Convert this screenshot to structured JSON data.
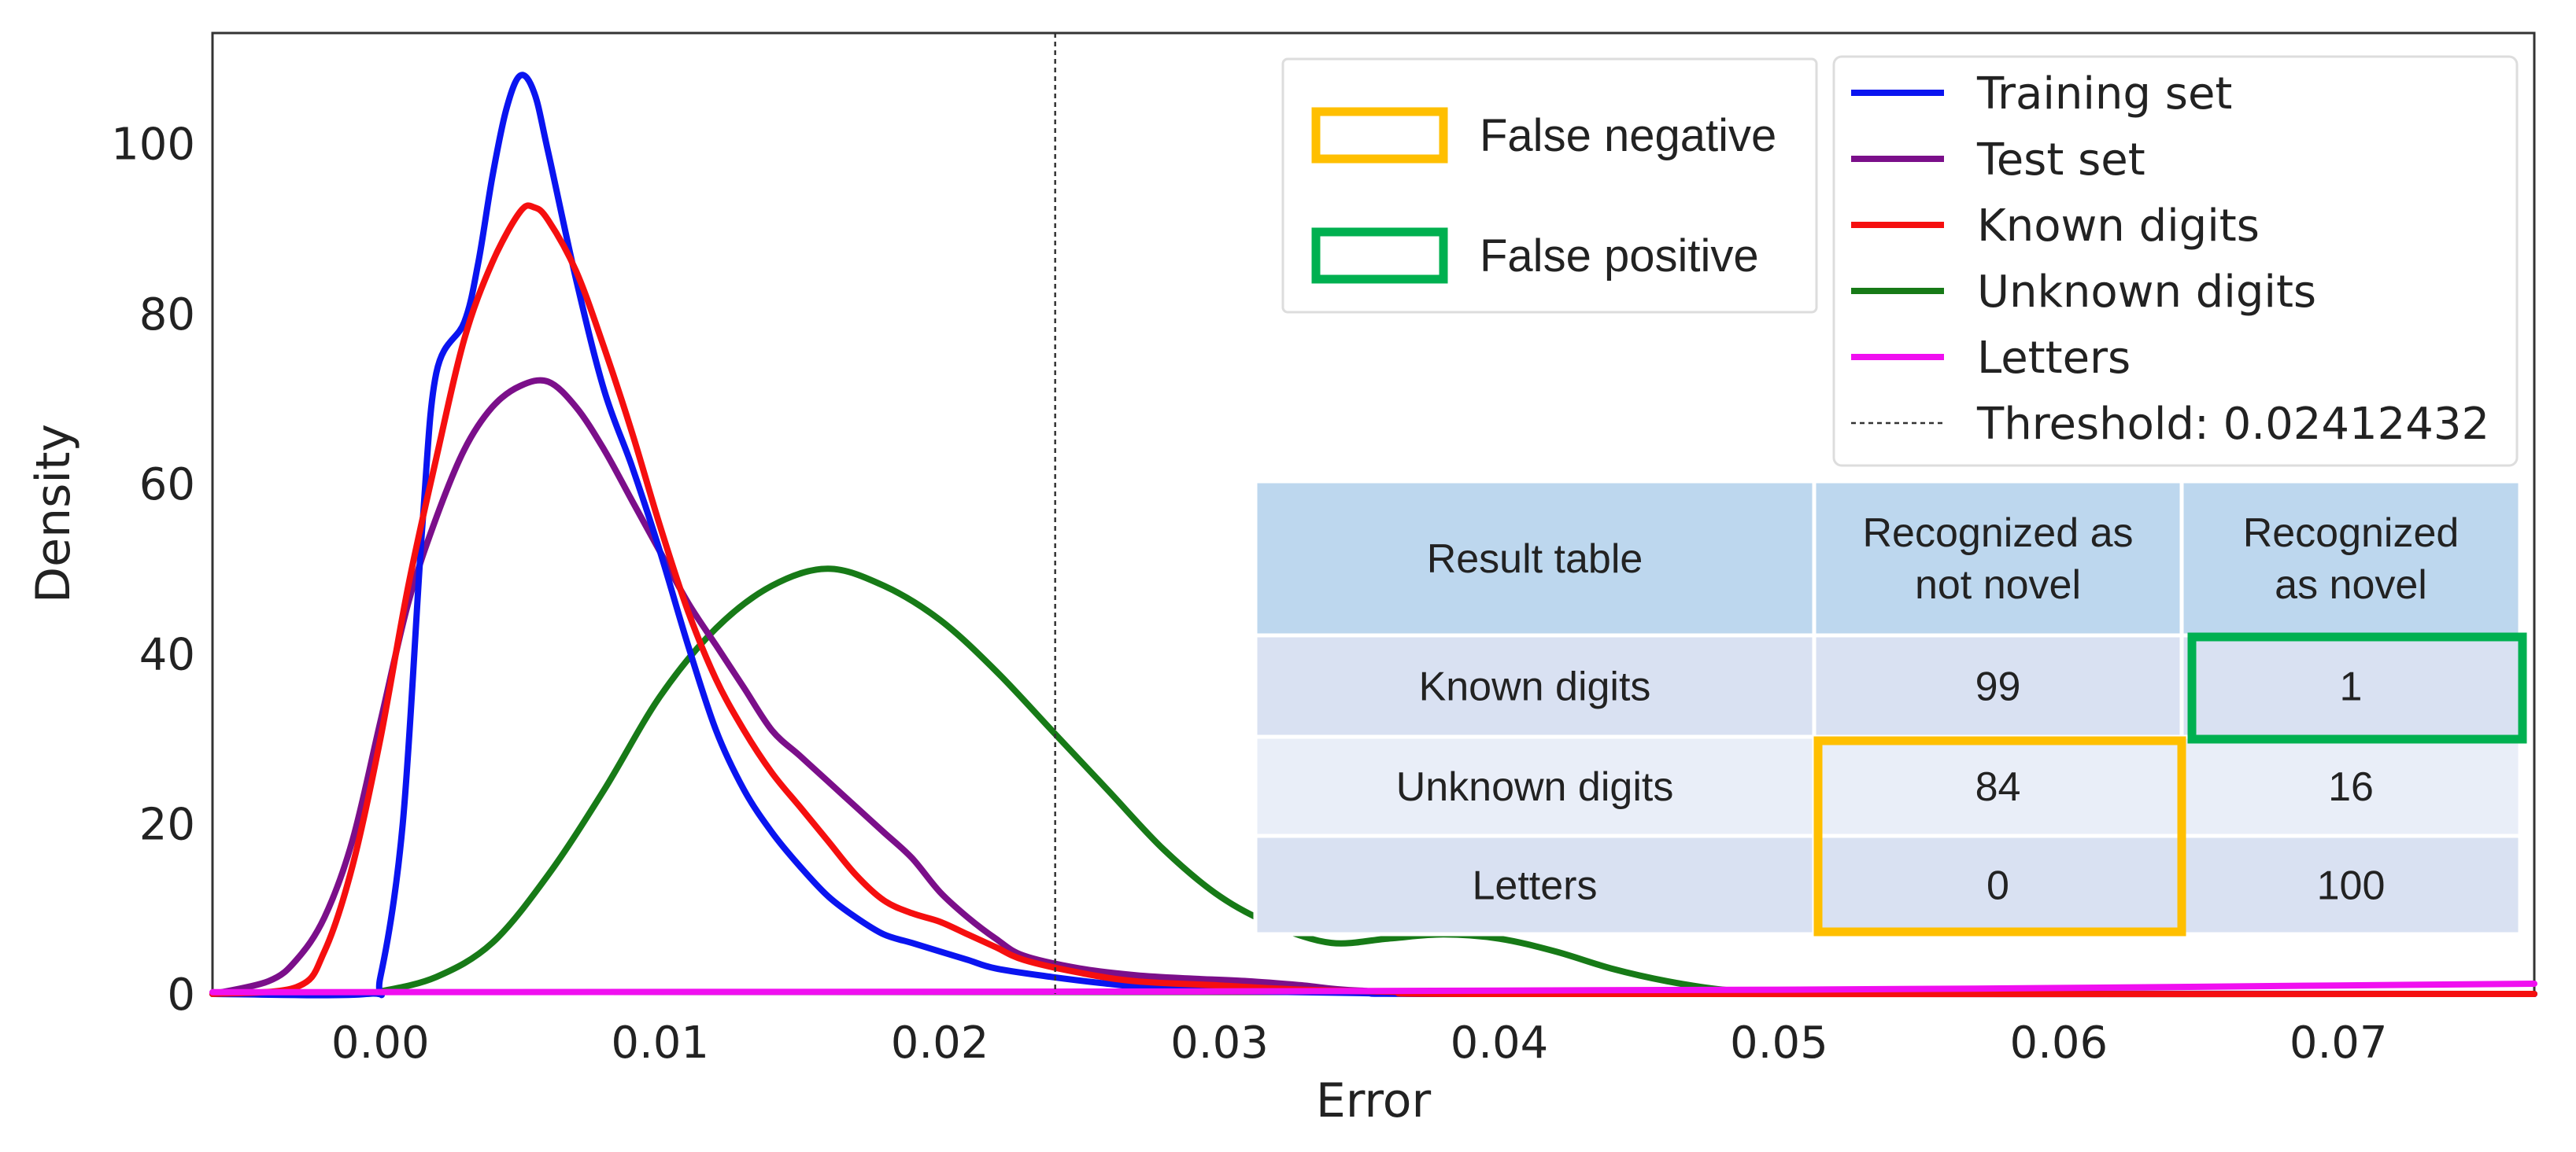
{
  "colors": {
    "training": "#0a14f0",
    "test": "#7b0f8a",
    "known": "#f50f0f",
    "unknown": "#177a17",
    "letters": "#f00ff0",
    "false_negative": "#ffbf00",
    "false_positive": "#00b050",
    "table_header": "#bdd7ee",
    "table_row_a": "#d9e1f2",
    "table_row_b": "#e9eef8"
  },
  "chart_data": {
    "type": "line",
    "xlabel": "Error",
    "ylabel": "Density",
    "xlim": [
      -0.006,
      0.077
    ],
    "ylim": [
      0,
      113
    ],
    "xticks": [
      "0.00",
      "0.01",
      "0.02",
      "0.03",
      "0.04",
      "0.05",
      "0.06",
      "0.07"
    ],
    "xtick_values": [
      0.0,
      0.01,
      0.02,
      0.03,
      0.04,
      0.05,
      0.06,
      0.07
    ],
    "yticks": [
      "0",
      "20",
      "40",
      "60",
      "80",
      "100"
    ],
    "ytick_values": [
      0,
      20,
      40,
      60,
      80,
      100
    ],
    "threshold": {
      "value": 0.02412432,
      "label": "Threshold: 0.02412432"
    },
    "series": [
      {
        "name": "Training set",
        "color_key": "training",
        "points": [
          [
            -0.006,
            0
          ],
          [
            -0.0005,
            0
          ],
          [
            0.0,
            2
          ],
          [
            0.0008,
            20
          ],
          [
            0.0015,
            55
          ],
          [
            0.002,
            73
          ],
          [
            0.003,
            79
          ],
          [
            0.0035,
            86
          ],
          [
            0.004,
            96
          ],
          [
            0.0045,
            104
          ],
          [
            0.005,
            108
          ],
          [
            0.0055,
            106
          ],
          [
            0.006,
            99
          ],
          [
            0.007,
            84
          ],
          [
            0.008,
            71
          ],
          [
            0.009,
            62
          ],
          [
            0.01,
            52
          ],
          [
            0.011,
            41
          ],
          [
            0.012,
            31
          ],
          [
            0.013,
            24
          ],
          [
            0.014,
            19
          ],
          [
            0.015,
            15
          ],
          [
            0.016,
            11.5
          ],
          [
            0.017,
            9
          ],
          [
            0.018,
            7
          ],
          [
            0.019,
            6
          ],
          [
            0.02,
            5
          ],
          [
            0.021,
            4
          ],
          [
            0.022,
            3
          ],
          [
            0.024,
            2
          ],
          [
            0.026,
            1.2
          ],
          [
            0.028,
            0.6
          ],
          [
            0.031,
            0.3
          ],
          [
            0.035,
            0.1
          ],
          [
            0.04,
            0
          ],
          [
            0.077,
            0
          ]
        ]
      },
      {
        "name": "Test set",
        "color_key": "test",
        "points": [
          [
            -0.006,
            0
          ],
          [
            -0.004,
            1.5
          ],
          [
            -0.003,
            4
          ],
          [
            -0.002,
            9
          ],
          [
            -0.001,
            18
          ],
          [
            0.0,
            32
          ],
          [
            0.001,
            46
          ],
          [
            0.002,
            56
          ],
          [
            0.003,
            64
          ],
          [
            0.004,
            69
          ],
          [
            0.005,
            71.5
          ],
          [
            0.006,
            72
          ],
          [
            0.007,
            69
          ],
          [
            0.008,
            64
          ],
          [
            0.009,
            58
          ],
          [
            0.01,
            52
          ],
          [
            0.011,
            46
          ],
          [
            0.012,
            41
          ],
          [
            0.013,
            36
          ],
          [
            0.014,
            31
          ],
          [
            0.015,
            28
          ],
          [
            0.016,
            25
          ],
          [
            0.017,
            22
          ],
          [
            0.018,
            19
          ],
          [
            0.019,
            16
          ],
          [
            0.02,
            12
          ],
          [
            0.021,
            9
          ],
          [
            0.022,
            6.5
          ],
          [
            0.023,
            4.5
          ],
          [
            0.025,
            3
          ],
          [
            0.027,
            2.2
          ],
          [
            0.029,
            1.8
          ],
          [
            0.031,
            1.5
          ],
          [
            0.033,
            1
          ],
          [
            0.035,
            0.4
          ],
          [
            0.04,
            0.1
          ],
          [
            0.077,
            0
          ]
        ]
      },
      {
        "name": "Known digits",
        "color_key": "known",
        "points": [
          [
            -0.006,
            0
          ],
          [
            -0.003,
            0.8
          ],
          [
            -0.002,
            5
          ],
          [
            -0.001,
            15
          ],
          [
            0.0,
            30
          ],
          [
            0.001,
            48
          ],
          [
            0.002,
            63
          ],
          [
            0.003,
            77
          ],
          [
            0.004,
            86
          ],
          [
            0.005,
            92
          ],
          [
            0.0055,
            92.5
          ],
          [
            0.006,
            91
          ],
          [
            0.007,
            85
          ],
          [
            0.008,
            76
          ],
          [
            0.009,
            66
          ],
          [
            0.01,
            55
          ],
          [
            0.011,
            45
          ],
          [
            0.012,
            37
          ],
          [
            0.013,
            31
          ],
          [
            0.014,
            26
          ],
          [
            0.015,
            22
          ],
          [
            0.016,
            18
          ],
          [
            0.017,
            14
          ],
          [
            0.018,
            11
          ],
          [
            0.019,
            9.5
          ],
          [
            0.02,
            8.5
          ],
          [
            0.021,
            7
          ],
          [
            0.022,
            5.5
          ],
          [
            0.023,
            4
          ],
          [
            0.025,
            2.5
          ],
          [
            0.027,
            1.5
          ],
          [
            0.03,
            1
          ],
          [
            0.033,
            0.5
          ],
          [
            0.037,
            0.2
          ],
          [
            0.04,
            0
          ],
          [
            0.077,
            0
          ]
        ]
      },
      {
        "name": "Unknown digits",
        "color_key": "unknown",
        "points": [
          [
            -0.006,
            0
          ],
          [
            -0.001,
            0
          ],
          [
            0.0,
            0.3
          ],
          [
            0.002,
            2
          ],
          [
            0.004,
            6
          ],
          [
            0.006,
            14
          ],
          [
            0.008,
            24
          ],
          [
            0.01,
            35
          ],
          [
            0.012,
            43
          ],
          [
            0.014,
            48
          ],
          [
            0.016,
            50
          ],
          [
            0.018,
            48
          ],
          [
            0.02,
            44
          ],
          [
            0.022,
            38
          ],
          [
            0.024,
            31
          ],
          [
            0.026,
            24
          ],
          [
            0.028,
            17
          ],
          [
            0.03,
            11.5
          ],
          [
            0.032,
            8
          ],
          [
            0.034,
            6
          ],
          [
            0.036,
            6.5
          ],
          [
            0.038,
            7
          ],
          [
            0.04,
            6.5
          ],
          [
            0.042,
            5
          ],
          [
            0.044,
            3
          ],
          [
            0.046,
            1.5
          ],
          [
            0.048,
            0.5
          ],
          [
            0.05,
            0.1
          ],
          [
            0.052,
            0
          ],
          [
            0.077,
            0
          ]
        ]
      },
      {
        "name": "Letters",
        "color_key": "letters",
        "points": [
          [
            -0.006,
            0.2
          ],
          [
            0.03,
            0.3
          ],
          [
            0.05,
            0.5
          ],
          [
            0.06,
            0.7
          ],
          [
            0.07,
            1
          ],
          [
            0.077,
            1.2
          ]
        ]
      }
    ],
    "legend": {
      "position": "top-right",
      "items": [
        "Training set",
        "Test set",
        "Known digits",
        "Unknown digits",
        "Letters",
        "Threshold: 0.02412432"
      ]
    }
  },
  "highlight_legend": {
    "false_negative": "False negative",
    "false_positive": "False positive"
  },
  "result_table": {
    "header": [
      "Result table",
      "Recognized as\nnot novel",
      "Recognized\nas novel"
    ],
    "rows": [
      [
        "Known digits",
        "99",
        "1"
      ],
      [
        "Unknown digits",
        "84",
        "16"
      ],
      [
        "Letters",
        "0",
        "100"
      ]
    ]
  }
}
